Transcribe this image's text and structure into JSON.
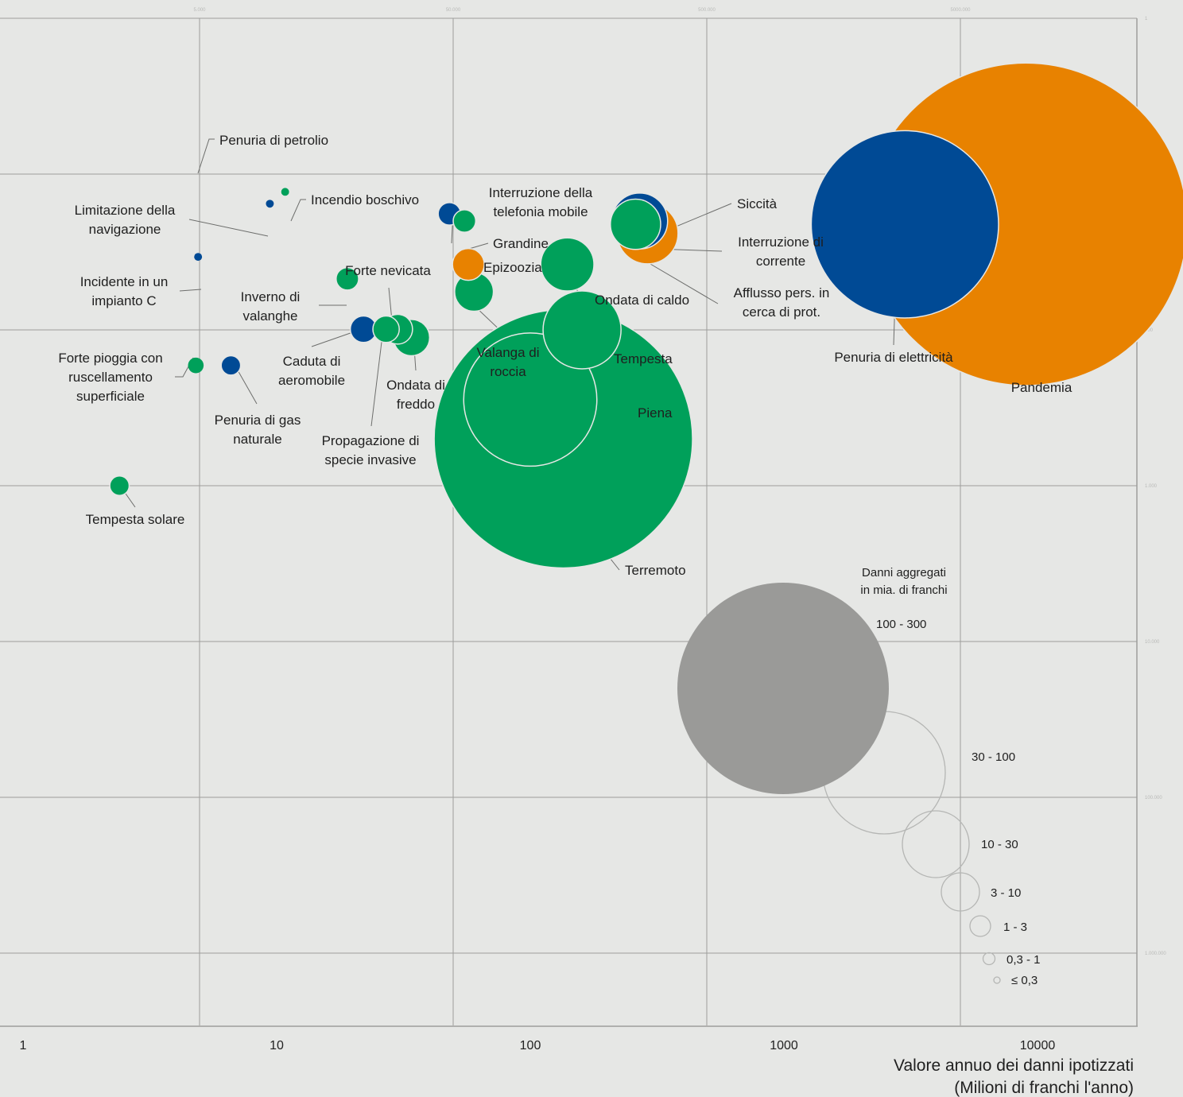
{
  "colors": {
    "blue": "#004a95",
    "green": "#00a05a",
    "orange": "#e88200",
    "grey": "#9a9a98",
    "legend_ring": "#b5b6b4"
  },
  "chart_data": {
    "type": "bubble",
    "x_axis": {
      "label_line1": "Valore annuo dei danni ipotizzati",
      "label_line2": "(Milioni di franchi l'anno)",
      "scale": "log",
      "ticks": [
        "1",
        "10",
        "100",
        "1000",
        "10000"
      ],
      "tick_values": [
        1,
        10,
        100,
        1000,
        10000
      ]
    },
    "y_axis": {
      "scale": "log (inverted)",
      "faint_top_ticks": [
        "5.000",
        "50.000",
        "500.000",
        "5000.000"
      ],
      "faint_right_ticks": [
        "1",
        "10",
        "100",
        "1.000",
        "10.000",
        "100.000",
        "1.000.000"
      ]
    },
    "grid": true,
    "points": [
      {
        "name": "Penuria di petrolio",
        "x": 10,
        "y": 10,
        "size": 0,
        "color": "green"
      },
      {
        "name": "Limitazione della navigazione",
        "x": 9.4,
        "y": 15.5,
        "size": 0.05,
        "color": "blue"
      },
      {
        "name": "Incendio boschivo",
        "x": 10.8,
        "y": 13,
        "size": 0.05,
        "color": "green"
      },
      {
        "name": "Incidente in un impianto C",
        "x": 4.9,
        "y": 34,
        "size": 0.05,
        "color": "blue"
      },
      {
        "name": "Forte pioggia con ruscellamento superficiale",
        "x": 4.8,
        "y": 169,
        "size": 0.3,
        "color": "green"
      },
      {
        "name": "Penuria di gas naturale",
        "x": 6.6,
        "y": 169,
        "size": 0.5,
        "color": "blue"
      },
      {
        "name": "Inverno di valanghe",
        "x": 19,
        "y": 47,
        "size": 0.7,
        "color": "green"
      },
      {
        "name": "Caduta di aeromobile",
        "x": 22,
        "y": 99,
        "size": 1,
        "color": "blue"
      },
      {
        "name": "Forte nevicata",
        "x": 27,
        "y": 99,
        "size": 1,
        "color": "green"
      },
      {
        "name": "Propagazione di specie invasive",
        "x": 30,
        "y": 99,
        "size": 1.3,
        "color": "green"
      },
      {
        "name": "Ondata di freddo",
        "x": 34,
        "y": 112,
        "size": 2,
        "color": "green"
      },
      {
        "name": "Interruzione della telefonia mobile",
        "x": 48,
        "y": 18,
        "size": 0.7,
        "color": "blue"
      },
      {
        "name": "Grandine",
        "x": 55,
        "y": 20,
        "size": 0.7,
        "color": "green"
      },
      {
        "name": "Epizoozia",
        "x": 57,
        "y": 38,
        "size": 1.5,
        "color": "orange"
      },
      {
        "name": "Valanga di roccia",
        "x": 60,
        "y": 57,
        "size": 2.3,
        "color": "green"
      },
      {
        "name": "Ondata di caldo",
        "x": 140,
        "y": 38,
        "size": 4.5,
        "color": "green"
      },
      {
        "name": "Tempesta",
        "x": 160,
        "y": 100,
        "size": 10,
        "color": "green"
      },
      {
        "name": "Siccità",
        "x": 270,
        "y": 20,
        "size": 5,
        "color": "blue"
      },
      {
        "name": "Interruzione di corrente",
        "x": 260,
        "y": 21,
        "size": 4,
        "color": "green"
      },
      {
        "name": "Afflusso pers. in cerca di prot.",
        "x": 290,
        "y": 24,
        "size": 6,
        "color": "orange"
      },
      {
        "name": "Piena",
        "x": 100,
        "y": 280,
        "size": 30,
        "color": "green"
      },
      {
        "name": "Terremoto",
        "x": 135,
        "y": 500,
        "size": 115,
        "color": "green"
      },
      {
        "name": "Penuria di elettricità",
        "x": 3000,
        "y": 21,
        "size": 60,
        "color": "blue"
      },
      {
        "name": "Pandemia",
        "x": 9000,
        "y": 21,
        "size": 180,
        "color": "orange"
      },
      {
        "name": "Tempesta solare",
        "x": 2.4,
        "y": 1000,
        "size": 0.5,
        "color": "green"
      }
    ]
  },
  "legend": {
    "title_line1": "Danni aggregati",
    "title_line2": "in mia. di franchi",
    "classes": [
      "100 - 300",
      "30 - 100",
      "10 - 30",
      "3 - 10",
      "1 - 3",
      "0,3 - 1",
      "≤ 0,3"
    ],
    "class_values": [
      200,
      65,
      20,
      6.5,
      2,
      0.65,
      0.2
    ]
  }
}
